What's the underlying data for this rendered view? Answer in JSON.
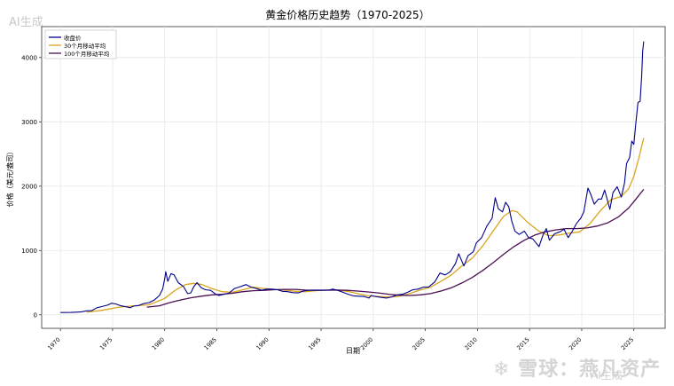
{
  "watermark_ai": "AI生成",
  "watermark_site": "❄ 雪球：燕凡资产",
  "watermark_ai2": "AI生成",
  "chart_data": {
    "type": "line",
    "title": "黄金价格历史趋势（1970-2025）",
    "xlabel": "日期",
    "ylabel": "价格（美元/盎司）",
    "xlim": [
      1968.2,
      2028.0
    ],
    "ylim": [
      -210,
      4480
    ],
    "xticks": [
      1970,
      1975,
      1980,
      1985,
      1990,
      1995,
      2000,
      2005,
      2010,
      2015,
      2020,
      2025
    ],
    "yticks": [
      0,
      1000,
      2000,
      3000,
      4000
    ],
    "grid": true,
    "legend": "top-left",
    "colors": {
      "close": "#00008b",
      "ma30": "#daa520",
      "ma100": "#4b0f52"
    },
    "series": [
      {
        "name": "收盘价",
        "key": "close",
        "points": [
          [
            1970.0,
            35
          ],
          [
            1971.0,
            37
          ],
          [
            1971.5,
            41
          ],
          [
            1972.0,
            46
          ],
          [
            1972.5,
            62
          ],
          [
            1973.0,
            65
          ],
          [
            1973.5,
            110
          ],
          [
            1974.0,
            130
          ],
          [
            1974.5,
            150
          ],
          [
            1974.9,
            180
          ],
          [
            1975.3,
            170
          ],
          [
            1975.8,
            140
          ],
          [
            1976.3,
            125
          ],
          [
            1976.7,
            110
          ],
          [
            1977.0,
            135
          ],
          [
            1977.5,
            145
          ],
          [
            1978.0,
            175
          ],
          [
            1978.5,
            190
          ],
          [
            1979.0,
            230
          ],
          [
            1979.5,
            300
          ],
          [
            1979.8,
            400
          ],
          [
            1980.0,
            560
          ],
          [
            1980.1,
            670
          ],
          [
            1980.3,
            520
          ],
          [
            1980.6,
            640
          ],
          [
            1980.9,
            620
          ],
          [
            1981.3,
            500
          ],
          [
            1981.8,
            440
          ],
          [
            1982.2,
            330
          ],
          [
            1982.5,
            340
          ],
          [
            1982.8,
            440
          ],
          [
            1983.1,
            500
          ],
          [
            1983.5,
            420
          ],
          [
            1983.9,
            390
          ],
          [
            1984.4,
            380
          ],
          [
            1984.9,
            320
          ],
          [
            1985.2,
            300
          ],
          [
            1985.7,
            320
          ],
          [
            1986.2,
            340
          ],
          [
            1986.7,
            410
          ],
          [
            1987.3,
            440
          ],
          [
            1987.8,
            470
          ],
          [
            1988.3,
            430
          ],
          [
            1988.8,
            410
          ],
          [
            1989.3,
            380
          ],
          [
            1989.8,
            400
          ],
          [
            1990.3,
            400
          ],
          [
            1990.8,
            390
          ],
          [
            1991.3,
            365
          ],
          [
            1991.8,
            360
          ],
          [
            1992.3,
            345
          ],
          [
            1992.8,
            340
          ],
          [
            1993.3,
            370
          ],
          [
            1993.8,
            380
          ],
          [
            1994.3,
            385
          ],
          [
            1994.8,
            385
          ],
          [
            1995.3,
            385
          ],
          [
            1995.8,
            385
          ],
          [
            1996.1,
            400
          ],
          [
            1996.6,
            380
          ],
          [
            1997.1,
            350
          ],
          [
            1997.6,
            320
          ],
          [
            1998.1,
            295
          ],
          [
            1998.6,
            290
          ],
          [
            1999.1,
            285
          ],
          [
            1999.6,
            260
          ],
          [
            1999.8,
            300
          ],
          [
            2000.2,
            285
          ],
          [
            2000.8,
            270
          ],
          [
            2001.3,
            260
          ],
          [
            2001.8,
            280
          ],
          [
            2002.3,
            310
          ],
          [
            2002.8,
            320
          ],
          [
            2003.3,
            350
          ],
          [
            2003.8,
            390
          ],
          [
            2004.3,
            400
          ],
          [
            2004.8,
            430
          ],
          [
            2005.3,
            430
          ],
          [
            2005.9,
            510
          ],
          [
            2006.4,
            650
          ],
          [
            2006.9,
            620
          ],
          [
            2007.4,
            670
          ],
          [
            2007.9,
            800
          ],
          [
            2008.2,
            950
          ],
          [
            2008.7,
            760
          ],
          [
            2009.1,
            920
          ],
          [
            2009.6,
            980
          ],
          [
            2009.9,
            1120
          ],
          [
            2010.4,
            1200
          ],
          [
            2010.9,
            1380
          ],
          [
            2011.4,
            1500
          ],
          [
            2011.7,
            1820
          ],
          [
            2012.0,
            1650
          ],
          [
            2012.4,
            1600
          ],
          [
            2012.7,
            1750
          ],
          [
            2013.0,
            1680
          ],
          [
            2013.3,
            1450
          ],
          [
            2013.6,
            1300
          ],
          [
            2014.0,
            1250
          ],
          [
            2014.5,
            1300
          ],
          [
            2014.9,
            1200
          ],
          [
            2015.3,
            1180
          ],
          [
            2015.9,
            1060
          ],
          [
            2016.3,
            1250
          ],
          [
            2016.6,
            1340
          ],
          [
            2016.9,
            1160
          ],
          [
            2017.4,
            1260
          ],
          [
            2017.9,
            1290
          ],
          [
            2018.3,
            1330
          ],
          [
            2018.7,
            1200
          ],
          [
            2019.1,
            1300
          ],
          [
            2019.5,
            1420
          ],
          [
            2019.9,
            1500
          ],
          [
            2020.2,
            1600
          ],
          [
            2020.6,
            1970
          ],
          [
            2020.9,
            1860
          ],
          [
            2021.2,
            1720
          ],
          [
            2021.6,
            1800
          ],
          [
            2021.9,
            1800
          ],
          [
            2022.2,
            1940
          ],
          [
            2022.7,
            1640
          ],
          [
            2023.0,
            1900
          ],
          [
            2023.4,
            1990
          ],
          [
            2023.8,
            1830
          ],
          [
            2024.1,
            2050
          ],
          [
            2024.3,
            2350
          ],
          [
            2024.6,
            2450
          ],
          [
            2024.8,
            2700
          ],
          [
            2025.0,
            2650
          ],
          [
            2025.2,
            3000
          ],
          [
            2025.4,
            3300
          ],
          [
            2025.6,
            3320
          ],
          [
            2025.75,
            3700
          ],
          [
            2025.85,
            4100
          ],
          [
            2025.95,
            4250
          ]
        ]
      },
      {
        "name": "30个月移动平均",
        "key": "ma30",
        "points": [
          [
            1972.5,
            40
          ],
          [
            1974.0,
            70
          ],
          [
            1975.5,
            115
          ],
          [
            1977.0,
            140
          ],
          [
            1978.5,
            155
          ],
          [
            1980.0,
            255
          ],
          [
            1981.0,
            380
          ],
          [
            1982.0,
            470
          ],
          [
            1982.8,
            490
          ],
          [
            1983.6,
            470
          ],
          [
            1984.5,
            410
          ],
          [
            1985.5,
            360
          ],
          [
            1986.5,
            350
          ],
          [
            1987.5,
            390
          ],
          [
            1988.5,
            430
          ],
          [
            1989.5,
            410
          ],
          [
            1990.5,
            395
          ],
          [
            1991.5,
            385
          ],
          [
            1992.5,
            365
          ],
          [
            1993.5,
            360
          ],
          [
            1994.5,
            375
          ],
          [
            1995.5,
            385
          ],
          [
            1996.5,
            385
          ],
          [
            1997.5,
            365
          ],
          [
            1998.5,
            330
          ],
          [
            1999.5,
            295
          ],
          [
            2000.5,
            285
          ],
          [
            2001.5,
            275
          ],
          [
            2002.5,
            290
          ],
          [
            2003.5,
            330
          ],
          [
            2004.5,
            385
          ],
          [
            2005.5,
            430
          ],
          [
            2006.5,
            520
          ],
          [
            2007.5,
            620
          ],
          [
            2008.5,
            760
          ],
          [
            2009.5,
            880
          ],
          [
            2010.5,
            1070
          ],
          [
            2011.5,
            1300
          ],
          [
            2012.5,
            1530
          ],
          [
            2013.3,
            1620
          ],
          [
            2013.8,
            1600
          ],
          [
            2014.8,
            1440
          ],
          [
            2015.8,
            1310
          ],
          [
            2016.8,
            1230
          ],
          [
            2017.8,
            1240
          ],
          [
            2018.8,
            1270
          ],
          [
            2019.8,
            1290
          ],
          [
            2020.8,
            1420
          ],
          [
            2021.8,
            1620
          ],
          [
            2022.8,
            1790
          ],
          [
            2023.8,
            1840
          ],
          [
            2024.5,
            1960
          ],
          [
            2025.0,
            2150
          ],
          [
            2025.5,
            2450
          ],
          [
            2025.95,
            2750
          ]
        ]
      },
      {
        "name": "100个月移动平均",
        "key": "ma100",
        "points": [
          [
            1978.3,
            120
          ],
          [
            1979.5,
            140
          ],
          [
            1980.5,
            190
          ],
          [
            1981.5,
            230
          ],
          [
            1982.5,
            265
          ],
          [
            1983.5,
            290
          ],
          [
            1984.5,
            310
          ],
          [
            1985.5,
            320
          ],
          [
            1986.5,
            335
          ],
          [
            1987.5,
            360
          ],
          [
            1988.5,
            375
          ],
          [
            1989.5,
            380
          ],
          [
            1990.5,
            390
          ],
          [
            1991.5,
            395
          ],
          [
            1992.5,
            395
          ],
          [
            1993.5,
            385
          ],
          [
            1994.5,
            380
          ],
          [
            1995.5,
            382
          ],
          [
            1996.5,
            385
          ],
          [
            1997.5,
            380
          ],
          [
            1998.5,
            370
          ],
          [
            1999.5,
            355
          ],
          [
            2000.5,
            340
          ],
          [
            2001.5,
            320
          ],
          [
            2002.5,
            305
          ],
          [
            2003.5,
            300
          ],
          [
            2004.5,
            310
          ],
          [
            2005.5,
            330
          ],
          [
            2006.5,
            370
          ],
          [
            2007.5,
            420
          ],
          [
            2008.5,
            495
          ],
          [
            2009.5,
            580
          ],
          [
            2010.5,
            690
          ],
          [
            2011.5,
            810
          ],
          [
            2012.5,
            940
          ],
          [
            2013.5,
            1060
          ],
          [
            2014.5,
            1160
          ],
          [
            2015.5,
            1240
          ],
          [
            2016.5,
            1290
          ],
          [
            2017.5,
            1320
          ],
          [
            2018.5,
            1340
          ],
          [
            2019.5,
            1340
          ],
          [
            2020.5,
            1350
          ],
          [
            2021.5,
            1380
          ],
          [
            2022.5,
            1430
          ],
          [
            2023.5,
            1520
          ],
          [
            2024.5,
            1660
          ],
          [
            2025.2,
            1800
          ],
          [
            2025.95,
            1950
          ]
        ]
      }
    ]
  }
}
